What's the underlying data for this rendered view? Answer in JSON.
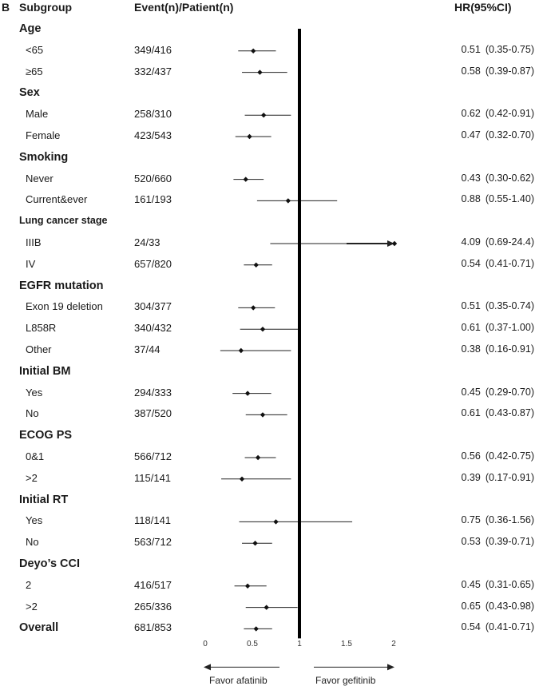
{
  "chart_data": {
    "type": "forest",
    "panel_label": "B",
    "columns": {
      "subgroup": "Subgroup",
      "events": "Event(n)/Patient(n)",
      "hr": "HR(95%CI)"
    },
    "groups": [
      {
        "title": "Age",
        "small": false,
        "rows": [
          {
            "label": "<65",
            "events": "349/416",
            "hr": 0.51,
            "lo": 0.35,
            "hi": 0.75,
            "hr_text": "0.51",
            "ci_text": "(0.35-0.75)"
          },
          {
            "label": "≥65",
            "events": "332/437",
            "hr": 0.58,
            "lo": 0.39,
            "hi": 0.87,
            "hr_text": "0.58",
            "ci_text": "(0.39-0.87)"
          }
        ]
      },
      {
        "title": "Sex",
        "small": false,
        "rows": [
          {
            "label": "Male",
            "events": "258/310",
            "hr": 0.62,
            "lo": 0.42,
            "hi": 0.91,
            "hr_text": "0.62",
            "ci_text": "(0.42-0.91)"
          },
          {
            "label": "Female",
            "events": "423/543",
            "hr": 0.47,
            "lo": 0.32,
            "hi": 0.7,
            "hr_text": "0.47",
            "ci_text": "(0.32-0.70)"
          }
        ]
      },
      {
        "title": "Smoking",
        "small": false,
        "rows": [
          {
            "label": "Never",
            "events": "520/660",
            "hr": 0.43,
            "lo": 0.3,
            "hi": 0.62,
            "hr_text": "0.43",
            "ci_text": "(0.30-0.62)"
          },
          {
            "label": "Current&ever",
            "events": "161/193",
            "hr": 0.88,
            "lo": 0.55,
            "hi": 1.4,
            "hr_text": "0.88",
            "ci_text": "(0.55-1.40)"
          }
        ]
      },
      {
        "title": "Lung cancer stage",
        "small": true,
        "rows": [
          {
            "label": "IIIB",
            "events": "24/33",
            "hr": 4.09,
            "lo": 0.69,
            "hi": 24.4,
            "hr_text": "4.09",
            "ci_text": "(0.69-24.4)"
          },
          {
            "label": "IV",
            "events": "657/820",
            "hr": 0.54,
            "lo": 0.41,
            "hi": 0.71,
            "hr_text": "0.54",
            "ci_text": "(0.41-0.71)"
          }
        ]
      },
      {
        "title": "EGFR mutation",
        "small": false,
        "rows": [
          {
            "label": "Exon 19 deletion",
            "events": "304/377",
            "hr": 0.51,
            "lo": 0.35,
            "hi": 0.74,
            "hr_text": "0.51",
            "ci_text": "(0.35-0.74)"
          },
          {
            "label": "L858R",
            "events": "340/432",
            "hr": 0.61,
            "lo": 0.37,
            "hi": 1.0,
            "hr_text": "0.61",
            "ci_text": "(0.37-1.00)"
          },
          {
            "label": "Other",
            "events": "37/44",
            "hr": 0.38,
            "lo": 0.16,
            "hi": 0.91,
            "hr_text": "0.38",
            "ci_text": "(0.16-0.91)"
          }
        ]
      },
      {
        "title": "Initial BM",
        "small": false,
        "rows": [
          {
            "label": "Yes",
            "events": "294/333",
            "hr": 0.45,
            "lo": 0.29,
            "hi": 0.7,
            "hr_text": "0.45",
            "ci_text": "(0.29-0.70)"
          },
          {
            "label": "No",
            "events": "387/520",
            "hr": 0.61,
            "lo": 0.43,
            "hi": 0.87,
            "hr_text": "0.61",
            "ci_text": "(0.43-0.87)"
          }
        ]
      },
      {
        "title": "ECOG PS",
        "small": false,
        "rows": [
          {
            "label": "0&1",
            "events": "566/712",
            "hr": 0.56,
            "lo": 0.42,
            "hi": 0.75,
            "hr_text": "0.56",
            "ci_text": "(0.42-0.75)"
          },
          {
            "label": ">2",
            "events": "115/141",
            "hr": 0.39,
            "lo": 0.17,
            "hi": 0.91,
            "hr_text": "0.39",
            "ci_text": "(0.17-0.91)"
          }
        ]
      },
      {
        "title": "Initial RT",
        "small": false,
        "rows": [
          {
            "label": "Yes",
            "events": "118/141",
            "hr": 0.75,
            "lo": 0.36,
            "hi": 1.56,
            "hr_text": "0.75",
            "ci_text": "(0.36-1.56)"
          },
          {
            "label": "No",
            "events": "563/712",
            "hr": 0.53,
            "lo": 0.39,
            "hi": 0.71,
            "hr_text": "0.53",
            "ci_text": "(0.39-0.71)"
          }
        ]
      },
      {
        "title": "Deyo’s CCI",
        "small": false,
        "rows": [
          {
            "label": "2",
            "events": "416/517",
            "hr": 0.45,
            "lo": 0.31,
            "hi": 0.65,
            "hr_text": "0.45",
            "ci_text": "(0.31-0.65)"
          },
          {
            "label": ">2",
            "events": "265/336",
            "hr": 0.65,
            "lo": 0.43,
            "hi": 0.98,
            "hr_text": "0.65",
            "ci_text": "(0.43-0.98)"
          }
        ]
      }
    ],
    "overall": {
      "title": "Overall",
      "events": "681/853",
      "hr": 0.54,
      "lo": 0.41,
      "hi": 0.71,
      "hr_text": "0.54",
      "ci_text": "(0.41-0.71)"
    },
    "x_axis": {
      "min": 0,
      "max": 2,
      "ticks": [
        "0",
        "0.5",
        "1",
        "1.5",
        "2"
      ],
      "ref_line": 1
    },
    "favor_left": "Favor afatinib",
    "favor_right": "Favor gefitinib"
  }
}
